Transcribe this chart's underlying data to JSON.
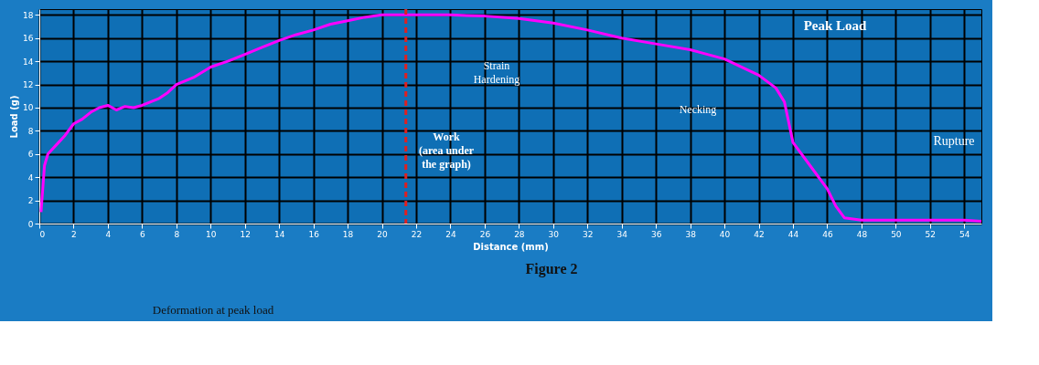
{
  "chart_data": {
    "type": "line",
    "xlabel": "Distance (mm)",
    "ylabel": "Load (g)",
    "x": [
      0.1,
      0.3,
      0.5,
      1,
      1.5,
      2,
      2.5,
      3,
      3.5,
      4,
      4.5,
      5,
      5.5,
      6,
      6.5,
      7,
      7.5,
      8,
      9,
      10,
      11,
      12,
      13,
      14,
      15,
      16,
      17,
      18,
      19,
      20,
      21,
      22,
      24,
      26,
      28,
      30,
      32,
      34,
      36,
      38,
      40,
      42,
      43,
      43.5,
      44,
      45,
      46,
      46.5,
      47,
      48,
      50,
      52,
      54,
      55
    ],
    "series": [
      {
        "color": "#ff00ff",
        "values": [
          1,
          5,
          6,
          6.8,
          7.6,
          8.6,
          9,
          9.6,
          10,
          10.2,
          9.8,
          10.1,
          10,
          10.2,
          10.5,
          10.8,
          11.3,
          12,
          12.6,
          13.5,
          14,
          14.6,
          15.2,
          15.8,
          16.3,
          16.7,
          17.2,
          17.5,
          17.8,
          18,
          18,
          18,
          18,
          17.9,
          17.7,
          17.3,
          16.7,
          16,
          15.5,
          15,
          14.2,
          12.8,
          11.7,
          10.5,
          7,
          5,
          3,
          1.5,
          0.5,
          0.3,
          0.3,
          0.3,
          0.3,
          0.2
        ]
      }
    ],
    "xlim": [
      0,
      55
    ],
    "xticks": [
      0,
      2,
      4,
      6,
      8,
      10,
      12,
      14,
      16,
      18,
      20,
      22,
      24,
      26,
      28,
      30,
      32,
      34,
      36,
      38,
      40,
      42,
      44,
      46,
      48,
      50,
      52,
      54
    ],
    "ylim": [
      0,
      18.5
    ],
    "yticks": [
      0,
      2,
      4,
      6,
      8,
      10,
      12,
      14,
      16,
      18
    ],
    "grid": true,
    "ref_lines": [
      {
        "axis": "x",
        "value": 21.4,
        "color": "#e02020",
        "line_style": "dashed"
      }
    ],
    "annotations": [
      "Peak Load",
      "Strain\nHardening",
      "Necking",
      "Rupture",
      "Work\n(area under\nthe graph)",
      "Figure 2",
      "Deformation at peak load"
    ]
  }
}
